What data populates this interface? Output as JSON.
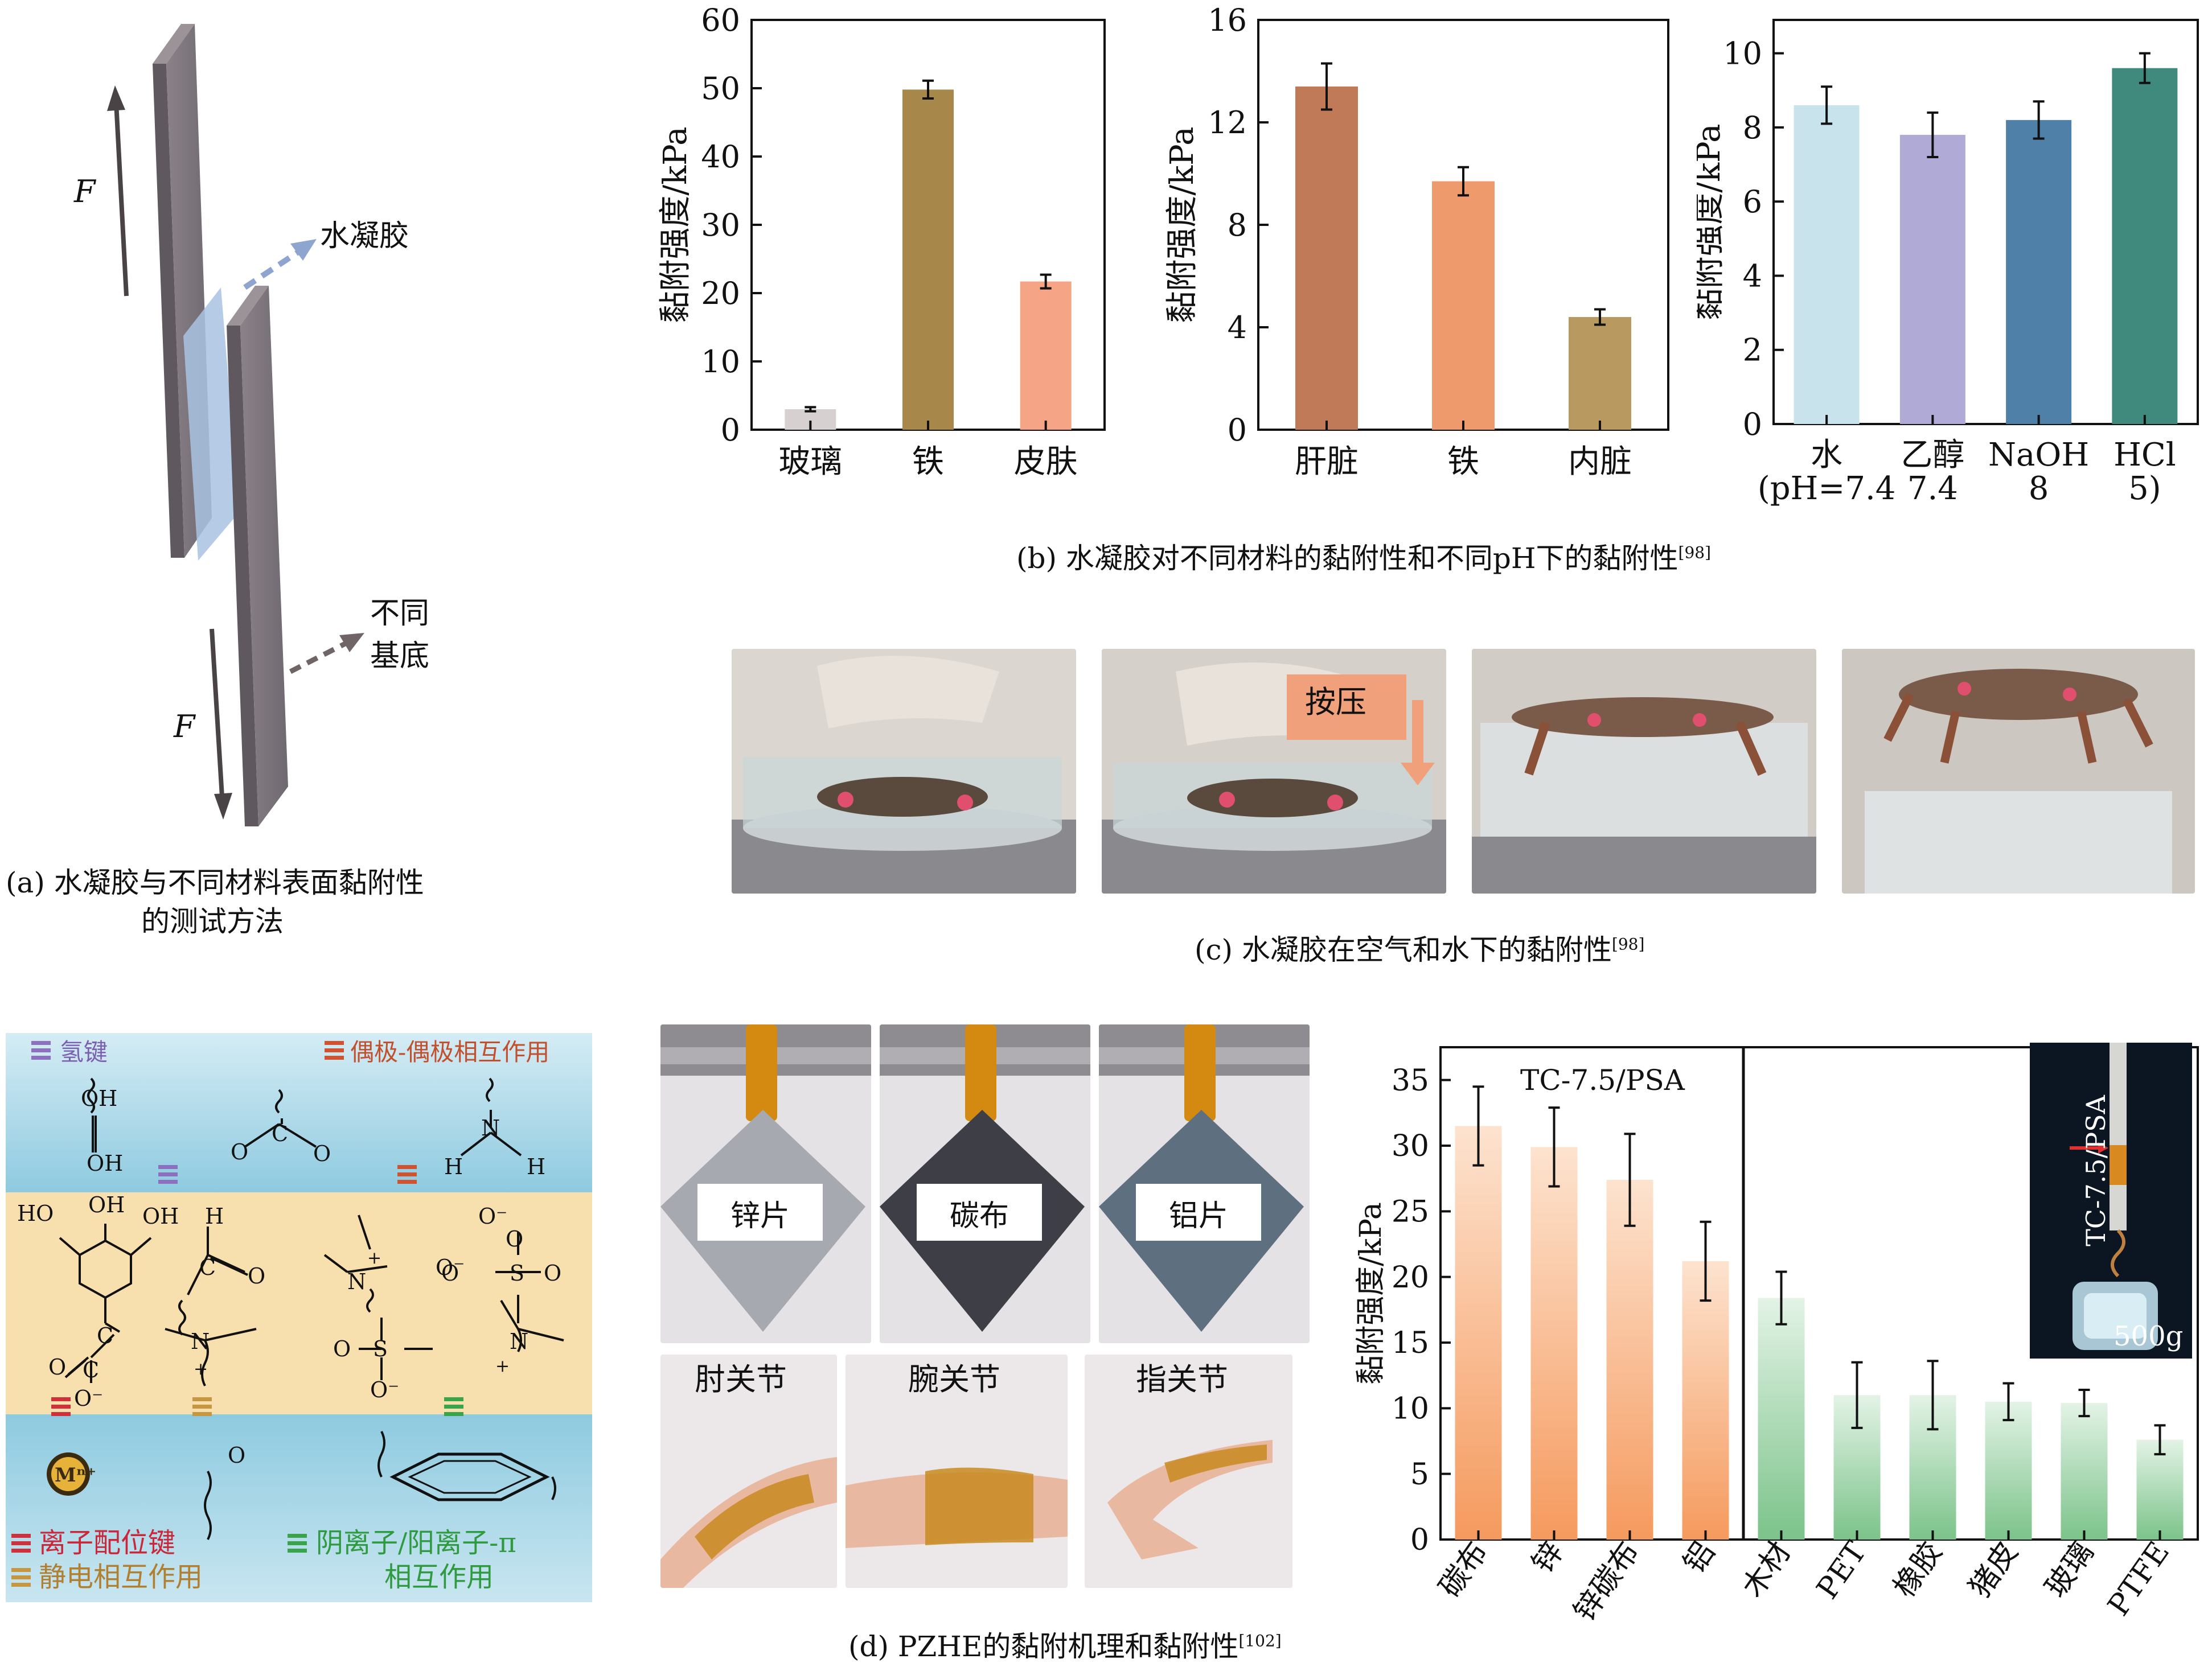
{
  "panel_a": {
    "force_label_top": "F",
    "force_label_bottom": "F",
    "hydrogel_label": "水凝胶",
    "substrate_label_line1": "不同",
    "substrate_label_line2": "基底",
    "caption_line1": "(a) 水凝胶与不同材料表面黏附性",
    "caption_line2": "的测试方法"
  },
  "panel_b": {
    "caption": "(b) 水凝胶对不同材料的黏附性和不同pH下的黏附性",
    "ref": "[98]"
  },
  "panel_c": {
    "press_label": "按压",
    "caption": "(c) 水凝胶在空气和水下的黏附性",
    "ref": "[98]"
  },
  "panel_d": {
    "caption": "(d) PZHE的黏附机理和黏附性",
    "ref": "[102]",
    "mech": {
      "legend_hbond": "氢键",
      "legend_dipole": "偶极-偶极相互作用",
      "legend_ionic": "离子配位键",
      "legend_electrostatic": "静电相互作用",
      "legend_cation_pi_line1": "阴离子/阳离子-π",
      "legend_cation_pi_line2": "相互作用",
      "metal_ion": "Mⁿ⁺",
      "groups": [
        "OH",
        "OH",
        "HO",
        "OH",
        "OH",
        "O",
        "C",
        "O",
        "C",
        "O⁻",
        "S",
        "O",
        "O",
        "O",
        "S",
        "O",
        "O⁻",
        "N",
        "H",
        "H",
        "N",
        "+",
        "N",
        "+",
        "N",
        "+",
        "C",
        "O",
        "O⁻",
        "C",
        "O",
        "H",
        "O",
        "O⁻"
      ]
    },
    "photos": {
      "zinc": "锌片",
      "carbon": "碳布",
      "aluminum": "铝片",
      "elbow": "肘关节",
      "wrist": "腕关节",
      "finger": "指关节"
    },
    "inset": {
      "sample": "TC-7.5/PSA",
      "weight": "500g"
    }
  },
  "colors": {
    "b1": [
      "#d6d0d0",
      "#a8884a",
      "#f5a585"
    ],
    "b2": [
      "#c07a58",
      "#ef9a6c",
      "#b89a60"
    ],
    "b3": [
      "#c8e3ec",
      "#b0aad6",
      "#4f80a8",
      "#3f8a7c"
    ],
    "d_orange": "#f59a5e",
    "d_green": "#7cc38a"
  },
  "chart_data": [
    {
      "type": "bar",
      "ylabel": "黏附强度/kPa",
      "categories": [
        "玻璃",
        "铁",
        "皮肤"
      ],
      "values": [
        3,
        49.8,
        21.7
      ],
      "errors": [
        0.3,
        1.3,
        1.0
      ],
      "ylim": [
        0,
        60
      ],
      "yticks": [
        0,
        10,
        20,
        30,
        40,
        50,
        60
      ]
    },
    {
      "type": "bar",
      "ylabel": "黏附强度/kPa",
      "categories": [
        "肝脏",
        "铁",
        "内脏"
      ],
      "values": [
        13.4,
        9.7,
        4.4
      ],
      "errors": [
        0.9,
        0.55,
        0.3
      ],
      "ylim": [
        0,
        16
      ],
      "yticks": [
        0,
        4,
        8,
        12,
        16
      ]
    },
    {
      "type": "bar",
      "ylabel": "黏附强度/kPa",
      "categories": [
        "水",
        "乙醇",
        "NaOH",
        "HCl"
      ],
      "category_sub": [
        "(pH=7.4",
        "7.4",
        "8",
        "5)"
      ],
      "values": [
        8.6,
        7.8,
        8.2,
        9.6
      ],
      "errors": [
        0.5,
        0.6,
        0.5,
        0.4
      ],
      "ylim": [
        0,
        10.9
      ],
      "yticks": [
        0,
        2,
        4,
        6,
        8,
        10
      ]
    },
    {
      "type": "bar",
      "title": "TC-7.5/PSA",
      "ylabel": "黏附强度/kPa",
      "categories": [
        "碳布",
        "锌",
        "锌碳布",
        "铝",
        "木材",
        "PET",
        "橡胶",
        "猪皮",
        "玻璃",
        "PTFE"
      ],
      "values": [
        31.5,
        29.9,
        27.4,
        21.2,
        18.4,
        11,
        11,
        10.5,
        10.4,
        7.6
      ],
      "errors": [
        3,
        3,
        3.5,
        3,
        2,
        2.5,
        2.6,
        1.4,
        1.0,
        1.1
      ],
      "ylim": [
        0,
        37.5
      ],
      "yticks": [
        0,
        5,
        10,
        15,
        20,
        25,
        30,
        35
      ]
    }
  ]
}
